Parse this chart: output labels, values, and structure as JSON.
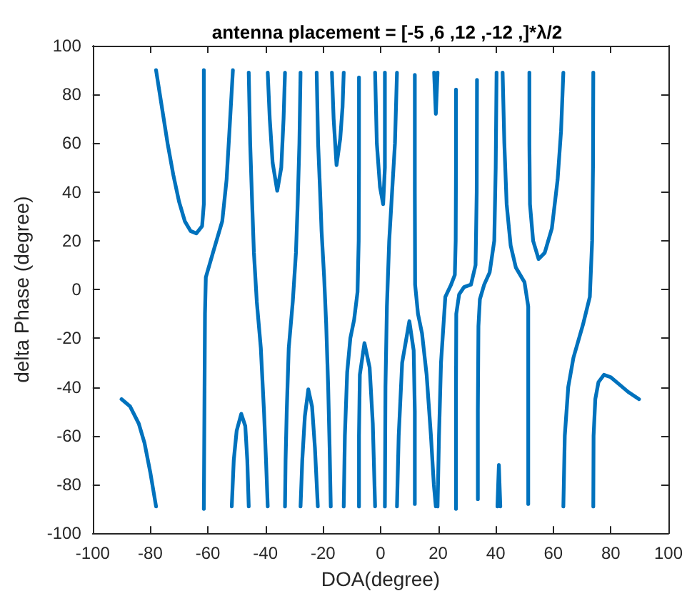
{
  "chart_data": {
    "type": "line",
    "title": "antenna placement = [-5 ,6 ,12 ,-12 ,]*λ/2",
    "xlabel": "DOA(degree)",
    "ylabel": "delta Phase (degree)",
    "xlim": [
      -100,
      100
    ],
    "xticks": [
      -100,
      -80,
      -60,
      -40,
      -20,
      0,
      20,
      40,
      60,
      80,
      100
    ],
    "ylim": [
      -100,
      100
    ],
    "yticks": [
      -100,
      -80,
      -60,
      -40,
      -20,
      0,
      20,
      40,
      60,
      80,
      100
    ],
    "grid": false,
    "marker": "none",
    "line_style": "solid",
    "series": [
      {
        "color": "#0072bd",
        "x": [
          -90,
          -87,
          -84,
          -82,
          -80,
          -78
        ],
        "values": [
          -45,
          -48,
          -55,
          -63,
          -75,
          -89
        ]
      },
      {
        "color": "#0072bd",
        "x": [
          -78,
          -76,
          -74,
          -72,
          -70,
          -68,
          -66,
          -64,
          -62,
          -61.4,
          -61.4,
          -61.4
        ],
        "values": [
          90,
          75,
          60,
          47,
          36,
          28,
          24,
          23,
          26,
          35,
          55,
          90
        ]
      },
      {
        "color": "#0072bd",
        "x": [
          -61.4,
          -61.2,
          -61,
          -60.7,
          -58,
          -55,
          -53.5,
          -52.6,
          -51.3
        ],
        "values": [
          -90,
          -50,
          -10,
          5,
          16,
          28,
          45,
          63,
          90
        ]
      },
      {
        "color": "#0072bd",
        "x": [
          -51.7,
          -51,
          -50,
          -48.4,
          -47,
          -46.3,
          -45.8
        ],
        "values": [
          -89,
          -70,
          -58,
          -51,
          -56,
          -70,
          -89
        ]
      },
      {
        "color": "#0072bd",
        "x": [
          -45.8,
          -45.3,
          -44.6,
          -44,
          -43,
          -41.6,
          -40.5,
          -39.8,
          -39.2
        ],
        "values": [
          89,
          60,
          35,
          15,
          -5,
          -24,
          -50,
          -70,
          -89
        ]
      },
      {
        "color": "#0072bd",
        "x": [
          -39.2,
          -38.5,
          -37.5,
          -35.9,
          -34.5,
          -33.7,
          -33.2
        ],
        "values": [
          89,
          70,
          52,
          40.5,
          50,
          70,
          89
        ]
      },
      {
        "color": "#0072bd",
        "x": [
          -27.8,
          -28.2,
          -28.8,
          -29.4,
          -30.5,
          -31.9,
          -32.6,
          -33,
          -33.2
        ],
        "values": [
          89,
          60,
          35,
          15,
          -5,
          -24,
          -50,
          -70,
          -89
        ]
      },
      {
        "color": "#0072bd",
        "x": [
          -27.8,
          -27.2,
          -26.3,
          -25.1,
          -23.8,
          -22.8,
          -21.8
        ],
        "values": [
          -89,
          -70,
          -52,
          -41,
          -48,
          -65,
          -89
        ]
      },
      {
        "color": "#0072bd",
        "x": [
          -22.2,
          -21.7,
          -21,
          -20.5,
          -19.6,
          -18.9,
          -18.2,
          -17.7,
          -17.3
        ],
        "values": [
          89,
          60,
          40,
          24,
          5,
          -14,
          -40,
          -65,
          -89
        ]
      },
      {
        "color": "#0072bd",
        "x": [
          -16.9,
          -16.3,
          -15.3,
          -14,
          -13.2,
          -12.8
        ],
        "values": [
          89,
          70,
          51,
          62,
          75,
          89
        ]
      },
      {
        "color": "#0072bd",
        "x": [
          -12.8,
          -12.4,
          -11.6,
          -10.5,
          -9.2,
          -8,
          -7.6,
          -7.5,
          -7.5
        ],
        "values": [
          -89,
          -60,
          -34,
          -20,
          -12.5,
          -1,
          20,
          50,
          87
        ]
      },
      {
        "color": "#0072bd",
        "x": [
          -7.5,
          -7.5,
          -7.2,
          -5.6,
          -3.8,
          -2.7,
          -1.9
        ],
        "values": [
          -89,
          -60,
          -35,
          -22,
          -32,
          -55,
          -89
        ]
      },
      {
        "color": "#0072bd",
        "x": [
          -1.9,
          -1.3,
          -0.2,
          0.9,
          1.5,
          1.5
        ],
        "values": [
          89,
          60,
          42,
          35,
          50,
          89
        ]
      },
      {
        "color": "#0072bd",
        "x": [
          5.7,
          5,
          4,
          3,
          2.2,
          1.7,
          1.5
        ],
        "values": [
          89,
          60,
          40,
          20,
          -7,
          -40,
          -89
        ]
      },
      {
        "color": "#0072bd",
        "x": [
          5.7,
          6.3,
          7.5,
          10,
          11.5,
          11.9,
          11.9
        ],
        "values": [
          -89,
          -60,
          -30,
          -13,
          -25,
          -50,
          -88
        ]
      },
      {
        "color": "#0072bd",
        "x": [
          11.9,
          11.9,
          12,
          13,
          14.4,
          16,
          17.5,
          18.5,
          19.2
        ],
        "values": [
          88,
          40,
          2,
          -10,
          -18,
          -35,
          -60,
          -80,
          -89
        ]
      },
      {
        "color": "#0072bd",
        "x": [
          18.6,
          19.2,
          19.8
        ],
        "values": [
          89,
          72,
          89
        ]
      },
      {
        "color": "#0072bd",
        "x": [
          19.8,
          20.3,
          21,
          22.5,
          24.5,
          25.8,
          26.1,
          26.2,
          26.2
        ],
        "values": [
          -89,
          -60,
          -30,
          -3,
          2,
          6,
          20,
          50,
          82
        ]
      },
      {
        "color": "#0072bd",
        "x": [
          26.2,
          26.2,
          26.3,
          27.3,
          29,
          31.4,
          33,
          33.4,
          33.5
        ],
        "values": [
          -90,
          -40,
          -10,
          -2,
          1,
          2,
          10,
          40,
          86
        ]
      },
      {
        "color": "#0072bd",
        "x": [
          33.8,
          33.8,
          34,
          34.5,
          36,
          37.9,
          39.5,
          40,
          40.3
        ],
        "values": [
          -86,
          -50,
          -15,
          -4,
          2,
          7,
          20,
          50,
          89
        ]
      },
      {
        "color": "#0072bd",
        "x": [
          40.6,
          41.1,
          41.6
        ],
        "values": [
          -89,
          -72,
          -89
        ]
      },
      {
        "color": "#0072bd",
        "x": [
          42.4,
          43,
          43.8,
          45.2,
          47,
          50,
          51.3,
          51.3,
          51.3
        ],
        "values": [
          89,
          60,
          35,
          18,
          9,
          3,
          -7,
          -40,
          -88
        ]
      },
      {
        "color": "#0072bd",
        "x": [
          51.7,
          51.7,
          51.9,
          53,
          54.9,
          57,
          59.5,
          61.5,
          62.7,
          63.5
        ],
        "values": [
          89,
          60,
          35,
          20,
          12.5,
          15,
          25,
          45,
          65,
          89
        ]
      },
      {
        "color": "#0072bd",
        "x": [
          63.5,
          64,
          65.2,
          67,
          70.3,
          72.7,
          73.5,
          73.8,
          73.9
        ],
        "values": [
          -89,
          -60,
          -40,
          -28,
          -14.5,
          -3,
          20,
          50,
          89
        ]
      },
      {
        "color": "#0072bd",
        "x": [
          73.9,
          74,
          74.6,
          75.7,
          77.6,
          80,
          83,
          86,
          89.8
        ],
        "values": [
          -89,
          -60,
          -45,
          -38,
          -35,
          -36,
          -39,
          -42,
          -45
        ]
      }
    ]
  }
}
